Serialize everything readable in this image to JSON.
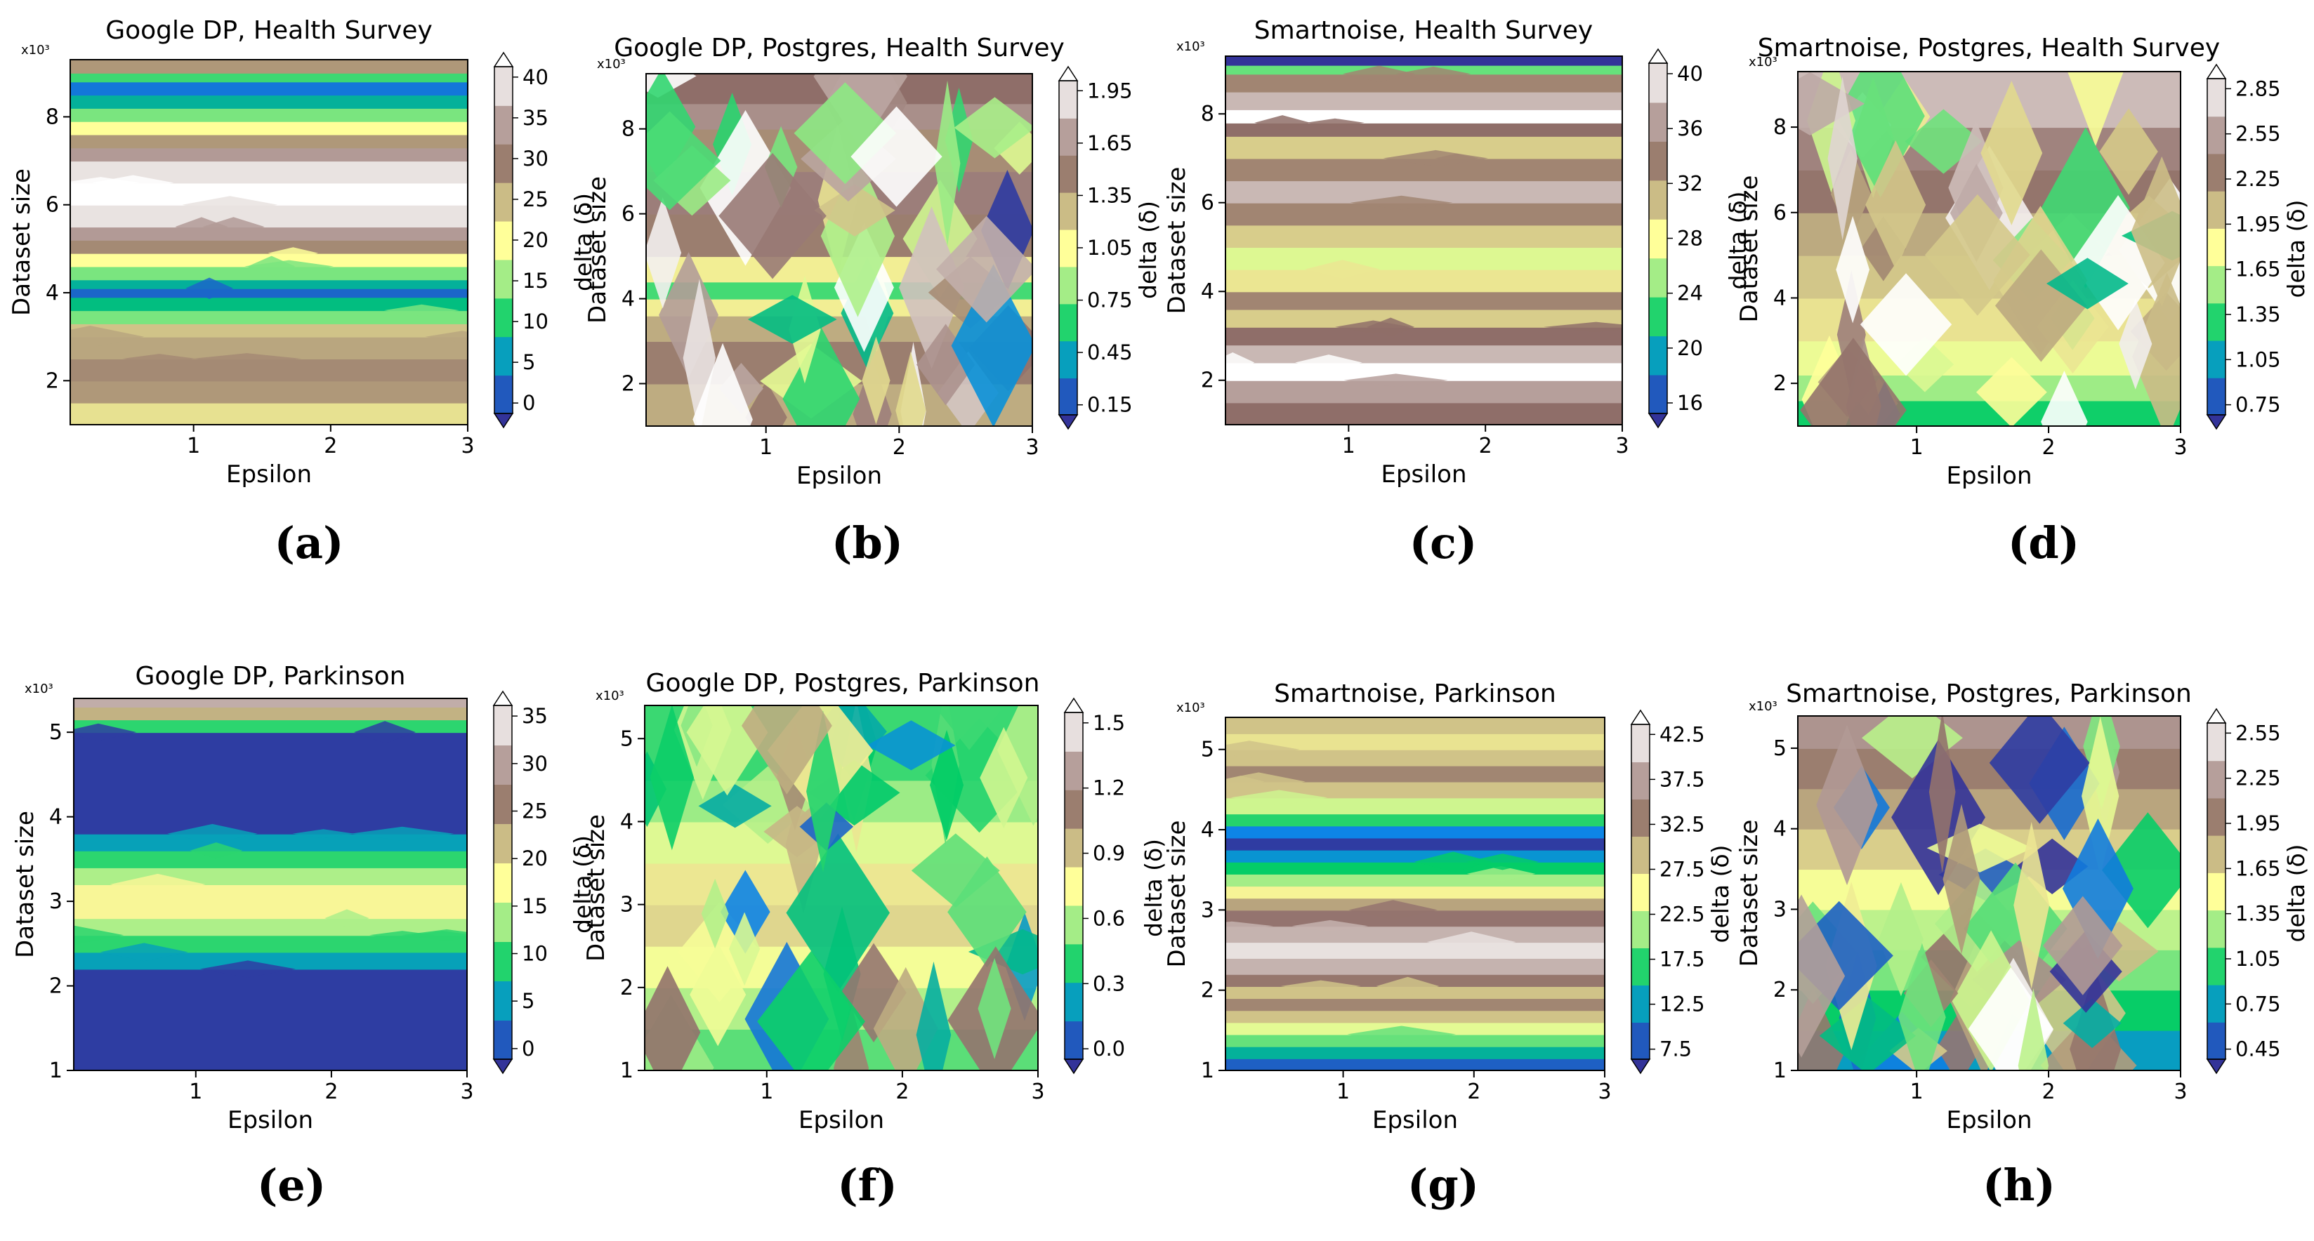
{
  "figure": {
    "panels": [
      {
        "id": "a",
        "caption": "(a)",
        "title": "Google DP, Health Survey",
        "xlabel": "Epsilon",
        "ylabel": "Dataset size",
        "y_multiplier": "x10³",
        "colorbar_label": "delta (δ)"
      },
      {
        "id": "b",
        "caption": "(b)",
        "title": "Google DP, Postgres, Health Survey",
        "xlabel": "Epsilon",
        "ylabel": "Dataset size",
        "y_multiplier": "x10³",
        "colorbar_label": "delta (δ)"
      },
      {
        "id": "c",
        "caption": "(c)",
        "title": "Smartnoise, Health Survey",
        "xlabel": "Epsilon",
        "ylabel": "Dataset size",
        "y_multiplier": "x10³",
        "colorbar_label": "delta (δ)"
      },
      {
        "id": "d",
        "caption": "(d)",
        "title": "Smartnoise, Postgres, Health Survey",
        "xlabel": "Epsilon",
        "ylabel": "Dataset size",
        "y_multiplier": "x10³",
        "colorbar_label": "delta (δ)"
      },
      {
        "id": "e",
        "caption": "(e)",
        "title": "Google DP, Parkinson",
        "xlabel": "Epsilon",
        "ylabel": "Dataset size",
        "y_multiplier": "x10³",
        "colorbar_label": "delta (δ)"
      },
      {
        "id": "f",
        "caption": "(f)",
        "title": "Google DP, Postgres, Parkinson",
        "xlabel": "Epsilon",
        "ylabel": "Dataset size",
        "y_multiplier": "x10³",
        "colorbar_label": "delta (δ)"
      },
      {
        "id": "g",
        "caption": "(g)",
        "title": "Smartnoise, Parkinson",
        "xlabel": "Epsilon",
        "ylabel": "Dataset size",
        "y_multiplier": "x10³",
        "colorbar_label": "delta (δ)"
      },
      {
        "id": "h",
        "caption": "(h)",
        "title": "Smartnoise, Postgres, Parkinson",
        "xlabel": "Epsilon",
        "ylabel": "Dataset size",
        "y_multiplier": "x10³",
        "colorbar_label": "delta (δ)"
      }
    ]
  },
  "chart_data": [
    {
      "type": "heatmap",
      "panel": "a",
      "title": "Google DP, Health Survey",
      "xlabel": "Epsilon",
      "ylabel": "Dataset size",
      "xlim": [
        0.1,
        3
      ],
      "ylim": [
        1,
        9.3
      ],
      "xticks": [
        1,
        2,
        3
      ],
      "yticks": [
        2,
        4,
        6,
        8
      ],
      "colorbar_ticks": [
        "0",
        "5",
        "10",
        "15",
        "20",
        "25",
        "30",
        "35",
        "40"
      ],
      "colorbar_range": [
        0,
        40
      ],
      "pattern": "horizontal-bands",
      "band_y": [
        1.0,
        1.5,
        2.0,
        2.5,
        3.0,
        3.3,
        3.6,
        3.9,
        4.1,
        4.3,
        4.6,
        4.9,
        5.2,
        5.5,
        6.0,
        6.5,
        7.0,
        7.3,
        7.6,
        7.9,
        8.2,
        8.5,
        8.8,
        9.0,
        9.3
      ],
      "band_values": [
        22,
        27,
        28,
        26,
        24,
        14,
        9,
        3,
        8,
        14,
        20,
        28,
        33,
        38,
        40,
        38,
        33,
        27,
        20,
        14,
        8,
        4,
        12,
        27
      ]
    },
    {
      "type": "heatmap",
      "panel": "b",
      "title": "Google DP, Postgres, Health Survey",
      "xlabel": "Epsilon",
      "ylabel": "Dataset size",
      "xlim": [
        0.1,
        3
      ],
      "ylim": [
        1,
        9.3
      ],
      "xticks": [
        1,
        2,
        3
      ],
      "yticks": [
        2,
        4,
        6,
        8
      ],
      "colorbar_ticks": [
        "0.15",
        "0.45",
        "0.75",
        "1.05",
        "1.35",
        "1.65",
        "1.95"
      ],
      "colorbar_range": [
        0.15,
        1.95
      ],
      "pattern": "patchy",
      "band_y": [
        1.0,
        2.0,
        3.0,
        3.6,
        4.0,
        4.4,
        5.0,
        6.0,
        7.0,
        8.0,
        8.6,
        9.3
      ],
      "band_values": [
        1.3,
        1.45,
        1.3,
        1.1,
        0.7,
        1.1,
        1.45,
        1.55,
        1.4,
        1.6,
        1.5
      ]
    },
    {
      "type": "heatmap",
      "panel": "c",
      "title": "Smartnoise, Health Survey",
      "xlabel": "Epsilon",
      "ylabel": "Dataset size",
      "xlim": [
        0.1,
        3
      ],
      "ylim": [
        1,
        9.3
      ],
      "xticks": [
        1,
        2,
        3
      ],
      "yticks": [
        2,
        4,
        6,
        8
      ],
      "colorbar_ticks": [
        "16",
        "20",
        "24",
        "28",
        "32",
        "36",
        "40"
      ],
      "colorbar_range": [
        16,
        40
      ],
      "pattern": "horizontal-bands",
      "band_y": [
        1.0,
        1.5,
        2.0,
        2.4,
        2.8,
        3.2,
        3.6,
        4.0,
        4.5,
        5.0,
        5.5,
        6.0,
        6.5,
        7.0,
        7.5,
        7.8,
        8.1,
        8.5,
        8.9,
        9.1,
        9.3
      ],
      "band_values": [
        34,
        36,
        40,
        37,
        34,
        30,
        33,
        29,
        27,
        30,
        33,
        37,
        33,
        30,
        34,
        40,
        37,
        33,
        24,
        16
      ]
    },
    {
      "type": "heatmap",
      "panel": "d",
      "title": "Smartnoise, Postgres, Health Survey",
      "xlabel": "Epsilon",
      "ylabel": "Dataset size",
      "xlim": [
        0.1,
        3
      ],
      "ylim": [
        1,
        9.3
      ],
      "xticks": [
        1,
        2,
        3
      ],
      "yticks": [
        2,
        4,
        6,
        8
      ],
      "colorbar_ticks": [
        "0.75",
        "1.05",
        "1.35",
        "1.65",
        "1.95",
        "2.25",
        "2.55",
        "2.85"
      ],
      "colorbar_range": [
        0.75,
        2.85
      ],
      "pattern": "patchy",
      "band_y": [
        1.0,
        1.6,
        2.2,
        3.0,
        4.0,
        5.0,
        6.0,
        7.0,
        8.0,
        9.3
      ],
      "band_values": [
        1.3,
        1.55,
        1.75,
        1.9,
        2.0,
        2.1,
        2.3,
        2.4,
        2.6
      ]
    },
    {
      "type": "heatmap",
      "panel": "e",
      "title": "Google DP, Parkinson",
      "xlabel": "Epsilon",
      "ylabel": "Dataset size",
      "xlim": [
        0.1,
        3
      ],
      "ylim": [
        1,
        5.4
      ],
      "xticks": [
        1,
        2,
        3
      ],
      "yticks": [
        1,
        2,
        3,
        4,
        5
      ],
      "colorbar_ticks": [
        "0",
        "5",
        "10",
        "15",
        "20",
        "25",
        "30",
        "35"
      ],
      "colorbar_range": [
        0,
        35
      ],
      "pattern": "horizontal-bands",
      "band_y": [
        1.0,
        2.2,
        2.4,
        2.6,
        2.8,
        3.2,
        3.4,
        3.6,
        3.8,
        5.0,
        5.15,
        5.3,
        5.4
      ],
      "band_values": [
        0.5,
        6,
        10,
        14,
        18,
        14,
        10,
        6,
        0.5,
        10,
        22,
        30
      ]
    },
    {
      "type": "heatmap",
      "panel": "f",
      "title": "Google DP, Postgres, Parkinson",
      "xlabel": "Epsilon",
      "ylabel": "Dataset size",
      "xlim": [
        0.1,
        3
      ],
      "ylim": [
        1,
        5.4
      ],
      "xticks": [
        1,
        2,
        3
      ],
      "yticks": [
        1,
        2,
        3,
        4,
        5
      ],
      "colorbar_ticks": [
        "0.0",
        "0.3",
        "0.6",
        "0.9",
        "1.2",
        "1.5"
      ],
      "colorbar_range": [
        -0.2,
        1.65
      ],
      "pattern": "patchy",
      "band_y": [
        1.0,
        1.5,
        2.0,
        2.5,
        3.0,
        3.5,
        4.0,
        4.5,
        5.4
      ],
      "band_values": [
        0.4,
        0.55,
        0.7,
        0.85,
        0.8,
        0.65,
        0.5,
        0.35
      ]
    },
    {
      "type": "heatmap",
      "panel": "g",
      "title": "Smartnoise, Parkinson",
      "xlabel": "Epsilon",
      "ylabel": "Dataset size",
      "xlim": [
        0.1,
        3
      ],
      "ylim": [
        1,
        5.4
      ],
      "xticks": [
        1,
        2,
        3
      ],
      "yticks": [
        1,
        2,
        3,
        4,
        5
      ],
      "colorbar_ticks": [
        "7.5",
        "12.5",
        "17.5",
        "22.5",
        "27.5",
        "32.5",
        "37.5",
        "42.5"
      ],
      "colorbar_range": [
        7.5,
        45
      ],
      "pattern": "horizontal-bands",
      "band_y": [
        1.0,
        1.15,
        1.3,
        1.45,
        1.6,
        1.75,
        1.9,
        2.05,
        2.2,
        2.4,
        2.6,
        2.8,
        3.0,
        3.15,
        3.3,
        3.45,
        3.6,
        3.75,
        3.9,
        4.05,
        4.2,
        4.4,
        4.6,
        4.8,
        5.0,
        5.2,
        5.4
      ],
      "band_values": [
        10,
        15,
        20,
        25,
        30,
        34,
        30,
        35,
        40,
        43,
        40,
        36,
        32,
        27,
        22,
        17,
        13,
        8,
        12,
        18,
        24,
        30,
        34,
        30,
        28,
        30
      ]
    },
    {
      "type": "heatmap",
      "panel": "h",
      "title": "Smartnoise, Postgres, Parkinson",
      "xlabel": "Epsilon",
      "ylabel": "Dataset size",
      "xlim": [
        0.1,
        3
      ],
      "ylim": [
        1,
        5.4
      ],
      "xticks": [
        1,
        2,
        3
      ],
      "yticks": [
        1,
        2,
        3,
        4,
        5
      ],
      "colorbar_ticks": [
        "0.45",
        "0.75",
        "1.05",
        "1.35",
        "1.65",
        "1.95",
        "2.25",
        "2.55"
      ],
      "colorbar_range": [
        0.45,
        2.6
      ],
      "pattern": "patchy",
      "band_y": [
        1.0,
        1.5,
        2.0,
        2.5,
        3.0,
        3.5,
        4.0,
        4.5,
        5.0,
        5.4
      ],
      "band_values": [
        0.8,
        1.0,
        1.2,
        1.35,
        1.5,
        1.7,
        1.85,
        2.0,
        2.2
      ]
    }
  ],
  "colormap": {
    "name": "terrain",
    "stops": [
      "#333399",
      "#0b88e9",
      "#00cc66",
      "#99eb85",
      "#ffff99",
      "#c4b484",
      "#8f6e69",
      "#c9b8b4",
      "#ffffff"
    ]
  }
}
